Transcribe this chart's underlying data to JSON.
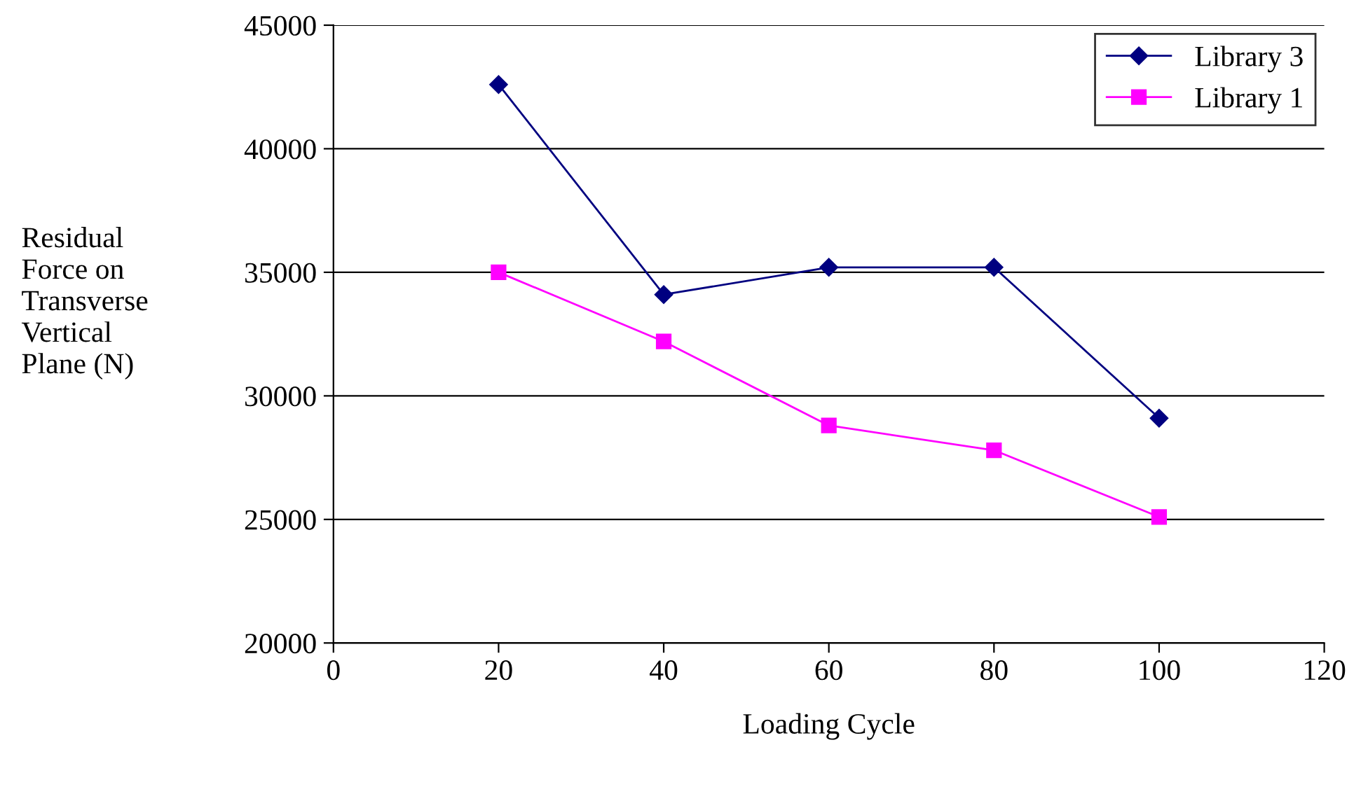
{
  "chart_data": {
    "type": "line",
    "xlabel": "Loading Cycle",
    "ylabel": "Residual\nForce on\nTransverse\nVertical\nPlane (N)",
    "x": [
      20,
      40,
      60,
      80,
      100
    ],
    "series": [
      {
        "name": "Library 3",
        "color": "#000080",
        "marker": "diamond",
        "values": [
          42600,
          34100,
          35200,
          35200,
          29100
        ]
      },
      {
        "name": "Library 1",
        "color": "#ff00ff",
        "marker": "square",
        "values": [
          35000,
          32200,
          28800,
          27800,
          25100
        ]
      }
    ],
    "xlim": [
      0,
      120
    ],
    "xticks": [
      0,
      20,
      40,
      60,
      80,
      100,
      120
    ],
    "ylim": [
      20000,
      45000
    ],
    "yticks": [
      20000,
      25000,
      30000,
      35000,
      40000,
      45000
    ],
    "grid": "y",
    "legend": "top right",
    "line_style": "solid"
  }
}
